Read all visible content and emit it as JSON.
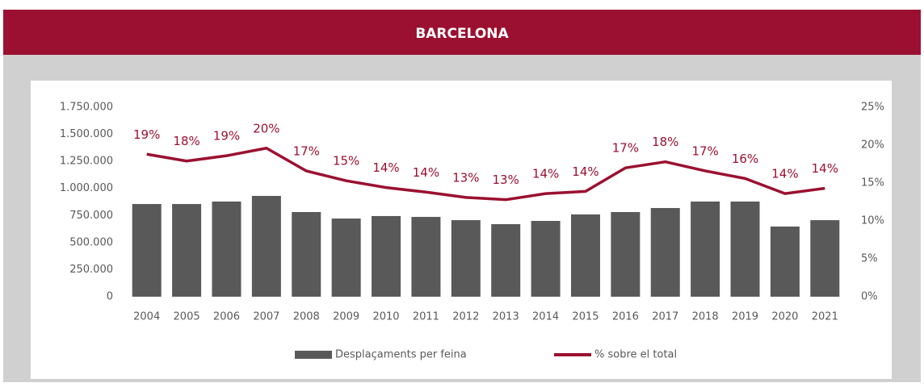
{
  "chart_data": {
    "type": "bar_line",
    "title": "BARCELONA",
    "categories": [
      "2004",
      "2005",
      "2006",
      "2007",
      "2008",
      "2009",
      "2010",
      "2011",
      "2012",
      "2013",
      "2014",
      "2015",
      "2016",
      "2017",
      "2018",
      "2019",
      "2020",
      "2021"
    ],
    "series": [
      {
        "name": "Desplaçaments per feina",
        "type": "bar",
        "color": "#595959",
        "values": [
          856000,
          856000,
          879000,
          931000,
          782000,
          722000,
          745000,
          737000,
          707000,
          670000,
          700000,
          760000,
          782000,
          819000,
          879000,
          879000,
          648000,
          707000
        ]
      },
      {
        "name": "% sobre el total",
        "type": "line",
        "axis": "y2",
        "color": "#9b1030",
        "values": [
          18.8,
          17.9,
          18.6,
          19.6,
          16.6,
          15.3,
          14.4,
          13.8,
          13.1,
          12.8,
          13.6,
          13.9,
          17.0,
          17.8,
          16.6,
          15.6,
          13.6,
          14.3
        ],
        "value_labels": [
          "19%",
          "18%",
          "19%",
          "20%",
          "17%",
          "15%",
          "14%",
          "14%",
          "13%",
          "13%",
          "14%",
          "14%",
          "17%",
          "18%",
          "17%",
          "16%",
          "14%",
          "14%"
        ]
      }
    ],
    "ylim": [
      0,
      1750000
    ],
    "yticks": [
      0,
      {
        "value": 250000,
        "label": "250.000"
      },
      {
        "value": 500000,
        "label": "500.000"
      },
      {
        "value": 750000,
        "label": "750.000"
      },
      {
        "value": 1000000,
        "label": "1.000.000"
      },
      {
        "value": 1250000,
        "label": "1.250.000"
      },
      {
        "value": 1500000,
        "label": "1.500.000"
      },
      {
        "value": 1750000,
        "label": "1.750.000"
      }
    ],
    "y2lim": [
      0,
      25
    ],
    "y2ticks": [
      {
        "value": 0,
        "label": "0%"
      },
      {
        "value": 5,
        "label": "5%"
      },
      {
        "value": 10,
        "label": "10%"
      },
      {
        "value": 15,
        "label": "15%"
      },
      {
        "value": 20,
        "label": "20%"
      },
      {
        "value": 25,
        "label": "25%"
      }
    ],
    "legend": "bottom"
  }
}
